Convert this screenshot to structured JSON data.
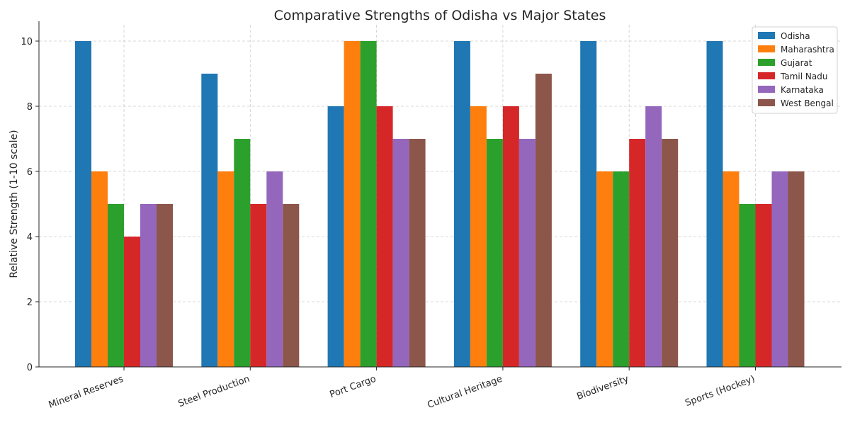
{
  "chart_data": {
    "type": "bar",
    "title": "Comparative Strengths of Odisha vs Major States",
    "xlabel": "",
    "ylabel": "Relative Strength (1-10 scale)",
    "ylim": [
      0,
      10.5
    ],
    "yticks": [
      0,
      2,
      4,
      6,
      8,
      10
    ],
    "grid": true,
    "legend_position": "top-right",
    "categories": [
      "Mineral Reserves",
      "Steel Production",
      "Port Cargo",
      "Cultural Heritage",
      "Biodiversity",
      "Sports (Hockey)"
    ],
    "series": [
      {
        "name": "Odisha",
        "color": "#1f77b4",
        "values": [
          10,
          9,
          8,
          10,
          10,
          10
        ]
      },
      {
        "name": "Maharashtra",
        "color": "#ff7f0e",
        "values": [
          6,
          6,
          10,
          8,
          6,
          6
        ]
      },
      {
        "name": "Gujarat",
        "color": "#2ca02c",
        "values": [
          5,
          7,
          10,
          7,
          6,
          5
        ]
      },
      {
        "name": "Tamil Nadu",
        "color": "#d62728",
        "values": [
          4,
          5,
          8,
          8,
          7,
          5
        ]
      },
      {
        "name": "Karnataka",
        "color": "#9467bd",
        "values": [
          5,
          6,
          7,
          7,
          8,
          6
        ]
      },
      {
        "name": "West Bengal",
        "color": "#8c564b",
        "values": [
          5,
          5,
          7,
          9,
          7,
          6
        ]
      }
    ]
  }
}
